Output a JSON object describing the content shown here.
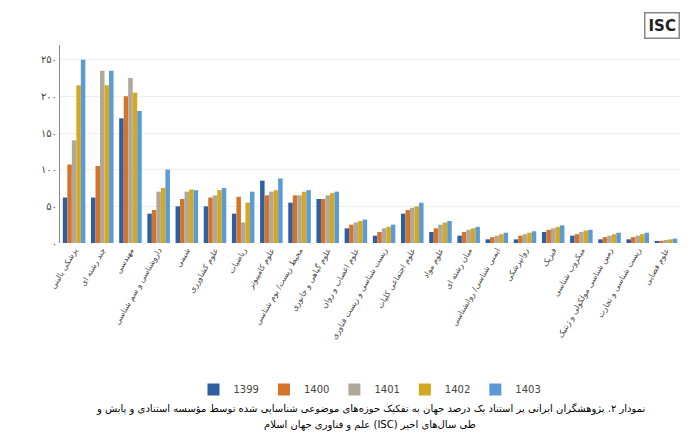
{
  "chart_data": {
    "type": "bar",
    "categories": [
      "پزشکی بالینی",
      "چند رشته ای",
      "مهندسی",
      "داروشناسی و سم شناسی",
      "شیمی",
      "علوم کشاورزی",
      "ریاضیات",
      "علوم کامپیوتر",
      "محیط زیست/ بوم شناسی",
      "علوم گیاهی و جانوری",
      "علوم اعصاب و روان",
      "زیست شناسی و زیست فناوری",
      "علوم اجتماعی کلیات",
      "علوم مواد",
      "میان رشته ای",
      "ایمنی شناسی/ روانشناسی",
      "روانپزشکی",
      "فیزیک",
      "میکروب شناسی",
      "زمین شناسی مولکولی و ژنتیک",
      "زیست شناسی و تجارت",
      "علوم فضایی"
    ],
    "series": [
      {
        "name": "1399",
        "color": "#2E5FA3",
        "values": [
          62,
          62,
          170,
          40,
          50,
          50,
          40,
          85,
          55,
          60,
          20,
          10,
          40,
          15,
          10,
          5,
          5,
          15,
          10,
          5,
          5,
          2
        ]
      },
      {
        "name": "1400",
        "color": "#D4742A",
        "values": [
          107,
          105,
          200,
          45,
          60,
          62,
          63,
          65,
          65,
          60,
          25,
          15,
          45,
          20,
          15,
          8,
          10,
          18,
          12,
          8,
          8,
          3
        ]
      },
      {
        "name": "1401",
        "color": "#B0A898",
        "values": [
          140,
          235,
          225,
          70,
          70,
          65,
          28,
          70,
          65,
          65,
          28,
          20,
          48,
          25,
          18,
          10,
          12,
          20,
          15,
          10,
          10,
          4
        ]
      },
      {
        "name": "1402",
        "color": "#D4A820",
        "values": [
          215,
          215,
          205,
          75,
          73,
          72,
          55,
          72,
          70,
          68,
          30,
          22,
          50,
          28,
          20,
          12,
          14,
          22,
          17,
          12,
          12,
          5
        ]
      },
      {
        "name": "1403",
        "color": "#5B9BD5",
        "values": [
          250,
          235,
          180,
          100,
          72,
          75,
          70,
          88,
          72,
          70,
          32,
          25,
          55,
          30,
          22,
          14,
          16,
          24,
          18,
          14,
          14,
          6
        ]
      }
    ],
    "ylim": [
      0,
      270
    ],
    "yticks": [
      {
        "value": 0,
        "label": "۰"
      },
      {
        "value": 50,
        "label": "۵۰"
      },
      {
        "value": 100,
        "label": "۱۰۰"
      },
      {
        "value": 150,
        "label": "۱۵۰"
      },
      {
        "value": 200,
        "label": "۲۰۰"
      },
      {
        "value": 250,
        "label": "۲۵۰"
      }
    ],
    "grid": true,
    "legend": "bottom",
    "annotations": [
      "ISC",
      "نمودار ۲. پژوهشگران ایرانی پر استناد یک درصد جهان به تفکیک حوزه‌های موضوعی شناسایی شده توسط مؤسسه استنادی و پایش و",
      "علم و فناوری جهان اسلام (ISC) طی سال‌های اخیر"
    ]
  }
}
